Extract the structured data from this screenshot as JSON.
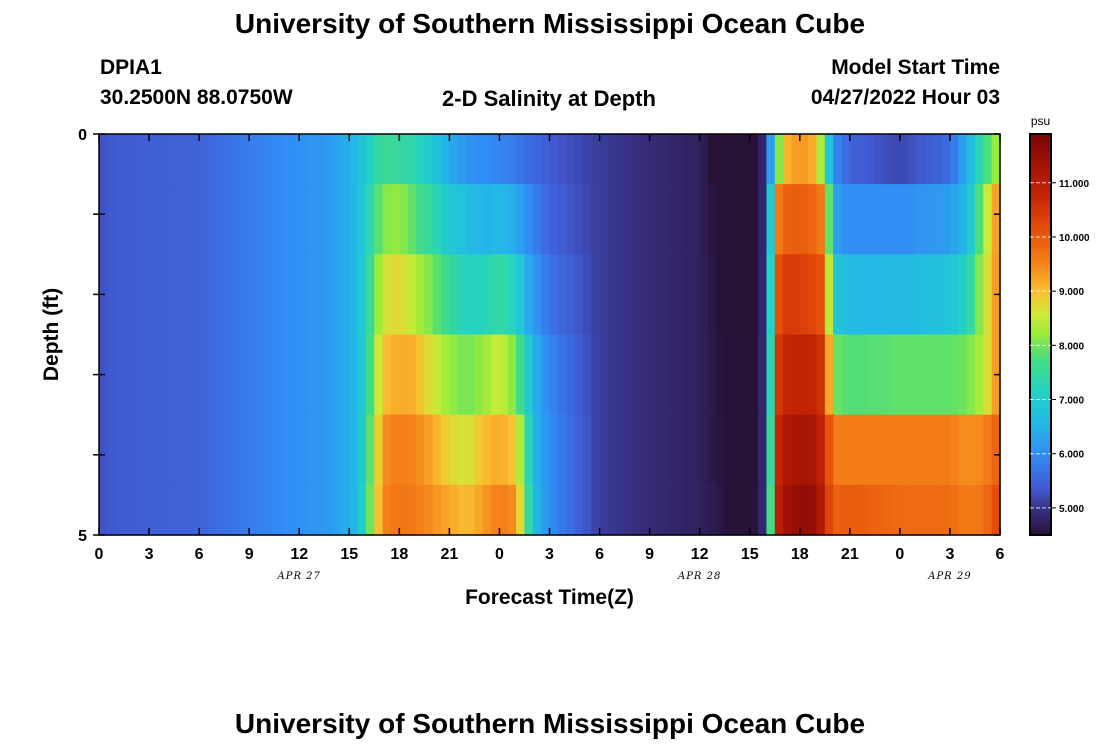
{
  "header": {
    "title": "University of Southern Mississippi Ocean Cube",
    "station": "DPIA1",
    "coords": "30.2500N  88.0750W",
    "plot_title": "2-D Salinity at Depth",
    "model_label": "Model Start Time",
    "model_time": "04/27/2022 Hour 03",
    "footer_title": "University of Southern Mississippi Ocean Cube"
  },
  "chart_data": {
    "type": "heatmap",
    "title": "2-D Salinity at Depth",
    "xlabel": "Forecast Time(Z)",
    "ylabel": "Depth (ft)",
    "x_tick_labels": [
      "0",
      "3",
      "6",
      "9",
      "12",
      "15",
      "18",
      "21",
      "0",
      "3",
      "6",
      "9",
      "12",
      "15",
      "18",
      "21",
      "0",
      "3",
      "6"
    ],
    "date_labels": [
      {
        "label": "APR 27",
        "tick_index": 4
      },
      {
        "label": "APR 28",
        "tick_index": 12
      },
      {
        "label": "APR 29",
        "tick_index": 17
      }
    ],
    "y_tick_labels": [
      "0",
      "5"
    ],
    "ylim": [
      0,
      5
    ],
    "x_hours_range": [
      0,
      54
    ],
    "depth_levels_ft": [
      0.25,
      1.0,
      2.0,
      3.0,
      4.0,
      4.75
    ],
    "colorbar": {
      "unit": "psu",
      "range": [
        4.5,
        11.9
      ],
      "tick_labels": [
        "5.000",
        "6.000",
        "7.000",
        "8.000",
        "9.000",
        "10.000",
        "11.000"
      ],
      "tick_values": [
        5,
        6,
        7,
        8,
        9,
        10,
        11
      ]
    },
    "salinity_keyframes": [
      {
        "h": 0.0,
        "v": [
          5.3,
          5.3,
          5.3,
          5.3,
          5.3,
          5.3
        ]
      },
      {
        "h": 1.0,
        "v": [
          5.4,
          5.4,
          5.4,
          5.4,
          5.4,
          5.4
        ]
      },
      {
        "h": 6.0,
        "v": [
          5.5,
          5.5,
          5.5,
          5.5,
          5.5,
          5.5
        ]
      },
      {
        "h": 10.0,
        "v": [
          5.9,
          5.9,
          5.9,
          5.9,
          5.9,
          5.9
        ]
      },
      {
        "h": 14.0,
        "v": [
          6.2,
          6.2,
          6.2,
          6.2,
          6.2,
          6.2
        ]
      },
      {
        "h": 15.5,
        "v": [
          6.6,
          6.6,
          6.6,
          6.6,
          6.6,
          6.6
        ]
      },
      {
        "h": 16.0,
        "v": [
          7.0,
          7.1,
          7.2,
          7.3,
          7.4,
          7.5
        ]
      },
      {
        "h": 17.0,
        "v": [
          7.6,
          8.1,
          8.6,
          9.0,
          9.4,
          9.5
        ]
      },
      {
        "h": 18.0,
        "v": [
          7.5,
          8.2,
          8.8,
          9.2,
          9.6,
          9.7
        ]
      },
      {
        "h": 19.0,
        "v": [
          7.3,
          7.8,
          8.4,
          9.1,
          9.5,
          9.6
        ]
      },
      {
        "h": 20.0,
        "v": [
          6.9,
          7.4,
          8.0,
          8.6,
          9.2,
          9.4
        ]
      },
      {
        "h": 21.0,
        "v": [
          6.4,
          6.9,
          7.5,
          8.2,
          8.8,
          9.2
        ]
      },
      {
        "h": 22.0,
        "v": [
          6.1,
          6.7,
          7.2,
          8.0,
          8.6,
          9.0
        ]
      },
      {
        "h": 23.0,
        "v": [
          6.0,
          6.5,
          7.2,
          8.2,
          9.0,
          9.3
        ]
      },
      {
        "h": 24.0,
        "v": [
          5.9,
          6.6,
          7.5,
          8.6,
          9.2,
          9.6
        ]
      },
      {
        "h": 25.0,
        "v": [
          5.8,
          6.4,
          7.1,
          8.0,
          8.9,
          9.4
        ]
      },
      {
        "h": 25.7,
        "v": [
          5.6,
          6.0,
          6.4,
          7.0,
          7.4,
          7.6
        ]
      },
      {
        "h": 26.0,
        "v": [
          5.6,
          5.9,
          6.2,
          6.5,
          6.6,
          6.7
        ]
      },
      {
        "h": 27.0,
        "v": [
          5.4,
          5.5,
          5.7,
          5.9,
          6.0,
          6.0
        ]
      },
      {
        "h": 30.0,
        "v": [
          5.1,
          5.1,
          5.1,
          5.1,
          5.1,
          5.1
        ]
      },
      {
        "h": 33.0,
        "v": [
          4.9,
          4.9,
          4.9,
          4.9,
          4.9,
          4.9
        ]
      },
      {
        "h": 36.0,
        "v": [
          4.75,
          4.75,
          4.75,
          4.75,
          4.75,
          4.75
        ]
      },
      {
        "h": 37.0,
        "v": [
          4.4,
          4.5,
          4.55,
          4.6,
          4.6,
          4.65
        ]
      },
      {
        "h": 38.0,
        "v": [
          4.1,
          4.2,
          4.3,
          4.35,
          4.4,
          4.45
        ]
      },
      {
        "h": 39.0,
        "v": [
          4.1,
          4.2,
          4.3,
          4.35,
          4.4,
          4.45
        ]
      },
      {
        "h": 39.5,
        "v": [
          4.4,
          4.45,
          4.5,
          4.55,
          4.6,
          4.6
        ]
      },
      {
        "h": 39.8,
        "v": [
          4.9,
          4.9,
          4.9,
          4.9,
          4.9,
          4.9
        ]
      },
      {
        "h": 40.1,
        "v": [
          5.6,
          5.8,
          5.9,
          6.0,
          6.2,
          6.4
        ]
      },
      {
        "h": 40.6,
        "v": [
          7.6,
          9.5,
          10.0,
          10.3,
          10.6,
          10.8
        ]
      },
      {
        "h": 41.0,
        "v": [
          9.0,
          9.9,
          10.4,
          10.8,
          11.1,
          11.3
        ]
      },
      {
        "h": 42.0,
        "v": [
          9.4,
          10.0,
          10.4,
          10.9,
          11.3,
          11.6
        ]
      },
      {
        "h": 43.0,
        "v": [
          9.1,
          9.8,
          10.2,
          10.8,
          11.2,
          11.5
        ]
      },
      {
        "h": 43.5,
        "v": [
          7.6,
          9.5,
          10.0,
          10.4,
          10.6,
          10.7
        ]
      },
      {
        "h": 44.0,
        "v": [
          6.0,
          6.3,
          6.9,
          8.0,
          9.6,
          9.9
        ]
      },
      {
        "h": 45.0,
        "v": [
          5.5,
          6.0,
          6.6,
          7.8,
          9.6,
          10.0
        ]
      },
      {
        "h": 48.0,
        "v": [
          5.2,
          6.0,
          6.6,
          7.9,
          9.6,
          9.8
        ]
      },
      {
        "h": 51.0,
        "v": [
          5.6,
          6.2,
          6.8,
          7.9,
          9.6,
          9.8
        ]
      },
      {
        "h": 52.0,
        "v": [
          6.4,
          6.6,
          7.2,
          8.0,
          9.4,
          9.6
        ]
      },
      {
        "h": 53.0,
        "v": [
          7.6,
          8.2,
          8.4,
          8.4,
          9.5,
          9.7
        ]
      },
      {
        "h": 54.0,
        "v": [
          8.4,
          9.6,
          9.6,
          9.6,
          10.0,
          10.3
        ]
      }
    ]
  }
}
